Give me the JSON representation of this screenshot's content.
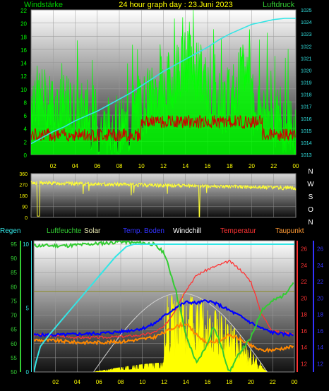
{
  "chart_data": [
    {
      "type": "line",
      "title": "24 hour graph day : 23.Juni 2023",
      "left_label": "Windstärke",
      "right_label": "Luftdruck",
      "x_ticks": [
        "02",
        "04",
        "06",
        "08",
        "10",
        "12",
        "14",
        "16",
        "18",
        "20",
        "22",
        "00"
      ],
      "y_left_ticks": [
        "22",
        "20",
        "18",
        "16",
        "14",
        "12",
        "10",
        "8",
        "6",
        "4",
        "2",
        "0"
      ],
      "y_right_ticks": [
        "1025",
        "1024",
        "1023",
        "1022",
        "1021",
        "1020",
        "1019",
        "1018",
        "1017",
        "1016",
        "1015",
        "1014",
        "1013"
      ],
      "ylim_left": [
        0,
        22
      ],
      "ylim_right": [
        1013,
        1025
      ],
      "colors": {
        "wind": "#00ff00",
        "gust": "#cc0000",
        "pressure": "#33e6e6",
        "left_label": "#00cc00",
        "title": "#ffff00",
        "right_label": "#33cc33"
      },
      "series": [
        {
          "key": "pressure",
          "x": [
            0,
            1,
            2,
            3,
            4,
            5,
            6,
            7,
            8,
            9,
            10,
            11,
            12,
            13,
            14,
            15,
            16,
            17,
            18,
            19,
            20,
            21,
            22,
            23,
            24
          ],
          "values": [
            1013.9,
            1014.4,
            1014.9,
            1015.3,
            1015.8,
            1016.2,
            1016.6,
            1017.1,
            1017.6,
            1018.1,
            1018.7,
            1019.3,
            1019.9,
            1020.4,
            1020.9,
            1021.4,
            1021.9,
            1022.5,
            1023.0,
            1023.4,
            1023.8,
            1024.0,
            1024.2,
            1024.3,
            1024.3
          ]
        }
      ]
    },
    {
      "type": "line",
      "y_ticks": [
        "360",
        "270",
        "180",
        "90",
        "0"
      ],
      "ylim": [
        0,
        360
      ],
      "compass_labels": [
        "N",
        "W",
        "S",
        "O",
        "N"
      ],
      "colors": {
        "direction": "#ffff33",
        "compass": "#ffffff"
      }
    },
    {
      "type": "line",
      "legend": [
        "Regen",
        "Luftfeuchte",
        "Solar",
        "Temp. Boden",
        "Windchill",
        "Temperatur",
        "Taupunkt"
      ],
      "legend_colors": [
        "#33e6e6",
        "#33cc33",
        "#e6e6b0",
        "#3333ff",
        "#ffffff",
        "#ff3333",
        "#ff9933"
      ],
      "x_ticks": [
        "02",
        "04",
        "06",
        "08",
        "10",
        "12",
        "14",
        "16",
        "18",
        "20",
        "22",
        "00"
      ],
      "humidity_ticks": [
        "95",
        "90",
        "85",
        "80",
        "75",
        "70",
        "65",
        "60",
        "55",
        "50"
      ],
      "rain_ticks": [
        "10",
        "5",
        "0"
      ],
      "temp_ticks": [
        "26",
        "24",
        "22",
        "20",
        "18",
        "16",
        "14",
        "12"
      ],
      "blue_ticks": [
        "26",
        "24",
        "22",
        "20",
        "18",
        "16",
        "14",
        "12"
      ],
      "ylim_humidity": [
        50,
        95
      ],
      "ylim_temp": [
        11,
        27
      ],
      "colors": {
        "humidity": "#33cc33",
        "solar": "#ffff00",
        "soil": "#0000ff",
        "temperature": "#ff3333",
        "dewpoint": "#ff8800",
        "rain": "#33e6e6",
        "temp_axis": "#ff3333",
        "blue_axis": "#3333ff"
      },
      "series": [
        {
          "key": "temperature",
          "x": [
            0,
            2,
            4,
            6,
            8,
            10,
            11,
            12,
            13,
            14,
            15,
            16,
            17,
            18,
            19,
            20,
            21,
            22,
            23,
            24
          ],
          "values": [
            15.5,
            15.4,
            15.2,
            15.2,
            15.3,
            15.5,
            15.8,
            16.5,
            18.5,
            21,
            22.8,
            23.5,
            24,
            24.5,
            23.5,
            22,
            18,
            16,
            15.8,
            15.6
          ]
        },
        {
          "key": "humidity",
          "x": [
            0,
            1,
            3,
            5,
            7,
            8,
            9,
            10,
            11,
            12,
            13,
            14,
            15,
            16,
            16.5,
            17,
            18,
            19,
            20,
            21,
            22,
            23,
            24
          ],
          "values": [
            94.5,
            94.5,
            94.5,
            95,
            95.5,
            96,
            95.5,
            95.5,
            95,
            92,
            80,
            63,
            53,
            60,
            66,
            62,
            50,
            57,
            62,
            72,
            75,
            77,
            82
          ]
        },
        {
          "key": "dewpoint",
          "x": [
            0,
            2,
            4,
            6,
            8,
            10,
            11,
            12,
            13,
            14,
            15,
            16,
            17,
            18,
            19,
            20,
            21,
            22,
            23,
            24
          ],
          "values": [
            14.9,
            14.8,
            14.6,
            14.6,
            14.7,
            15,
            15.2,
            15.8,
            16.5,
            16.9,
            15.5,
            14.5,
            14.8,
            15.5,
            15,
            14.2,
            13.6,
            13.7,
            13.9,
            14.1
          ]
        },
        {
          "key": "soil",
          "x": [
            0,
            2,
            4,
            6,
            8,
            10,
            11,
            12,
            13,
            14,
            15,
            16,
            17,
            18,
            19,
            20,
            21,
            22,
            23,
            24
          ],
          "values": [
            15.5,
            15.5,
            15.6,
            15.7,
            15.9,
            16.3,
            16.8,
            17.8,
            18.8,
            19.5,
            19.4,
            19.7,
            19.2,
            18.5,
            17.8,
            17.0,
            16.3,
            15.8,
            15.6,
            15.5
          ]
        },
        {
          "key": "rain",
          "x": [
            0,
            0.2,
            0.6,
            1.5,
            2.5,
            3.5,
            4.5,
            5.5,
            6.5,
            7.5,
            8.5,
            9.2,
            10,
            20,
            24
          ],
          "values": [
            0,
            0.8,
            2,
            3,
            4,
            5,
            6,
            7,
            8,
            9,
            9.8,
            10,
            10,
            10,
            10
          ]
        }
      ]
    }
  ]
}
